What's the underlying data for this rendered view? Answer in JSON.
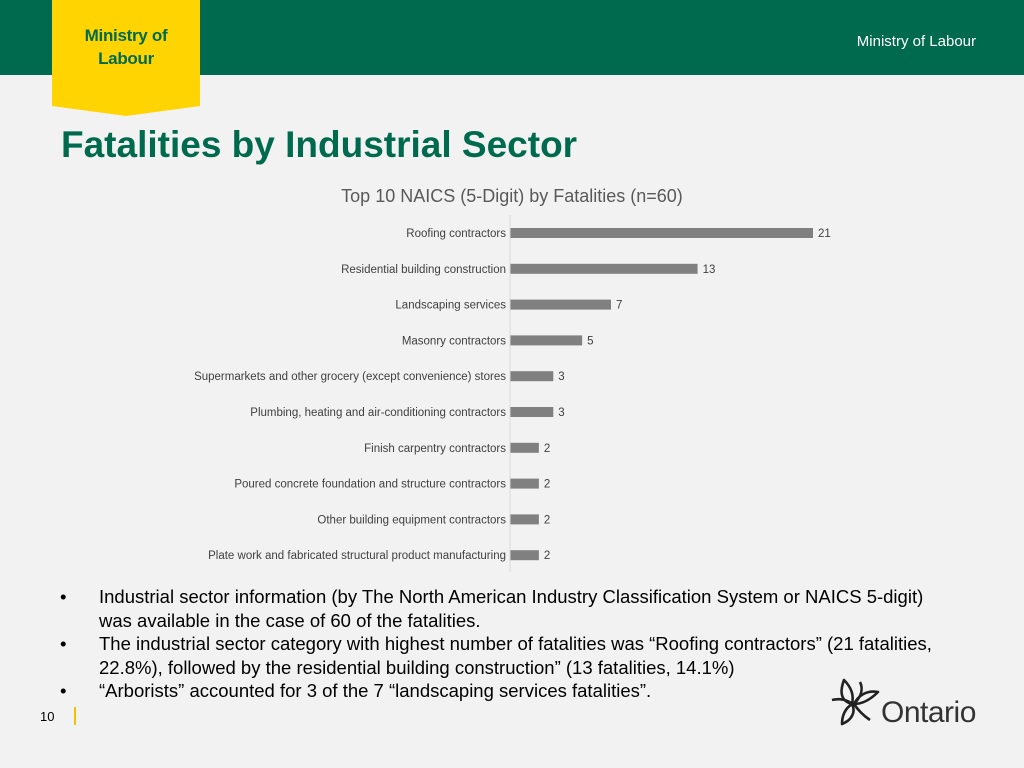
{
  "header": {
    "badge_text": "Ministry of\nLabour",
    "title": "Ministry of Labour",
    "brand_green": "#006a4e",
    "badge_yellow": "#ffd400"
  },
  "page_title": "Fatalities by Industrial Sector",
  "chart_data": {
    "type": "bar",
    "orientation": "horizontal",
    "title": "Top 10 NAICS (5-Digit) by Fatalities (n=60)",
    "categories": [
      "Roofing contractors",
      "Residential building construction",
      "Landscaping services",
      "Masonry contractors",
      "Supermarkets and other grocery (except convenience) stores",
      "Plumbing, heating and air-conditioning contractors",
      "Finish carpentry contractors",
      "Poured concrete foundation and structure contractors",
      "Other building equipment contractors",
      "Plate work and fabricated structural product manufacturing"
    ],
    "values": [
      21,
      13,
      7,
      5,
      3,
      3,
      2,
      2,
      2,
      2
    ],
    "data_labels": [
      "21",
      "13",
      "7",
      "5",
      "3",
      "3",
      "2",
      "2",
      "2",
      "2"
    ],
    "xlim": [
      0,
      21
    ],
    "grid": false,
    "bar_color": "#808080"
  },
  "bullets": [
    "Industrial sector information (by The North American Industry Classification System or NAICS 5-digit) was available in the case of 60 of the fatalities.",
    "The industrial sector category with highest number of fatalities was “Roofing contractors” (21 fatalities, 22.8%), followed by the residential building construction” (13 fatalities, 14.1%)",
    "“Arborists” accounted for 3 of the 7 “landscaping services fatalities”."
  ],
  "footer": {
    "page_number": "10",
    "logo_text": "Ontario",
    "logo_icon": "trillium-icon"
  }
}
